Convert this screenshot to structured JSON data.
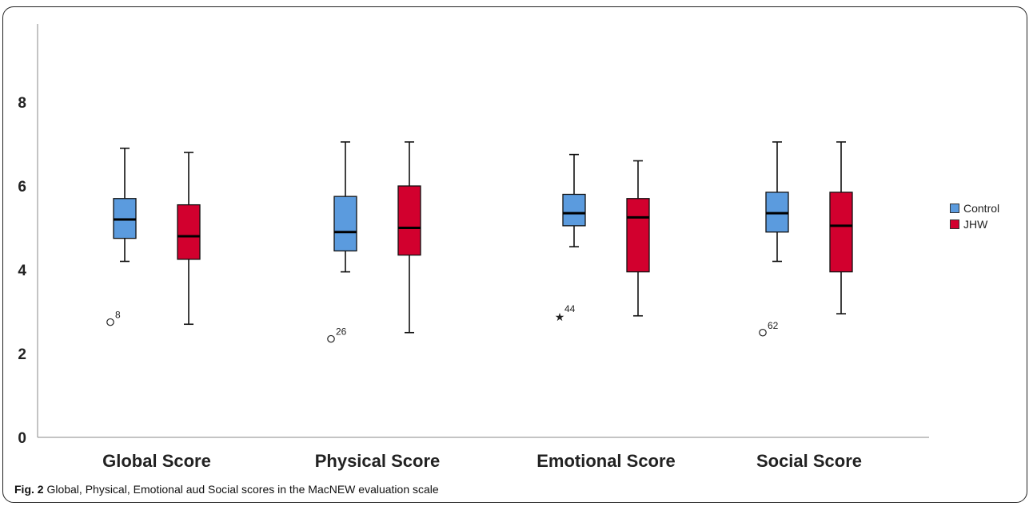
{
  "caption": {
    "label": "Fig. 2",
    "text": "Global, Physical, Emotional aud Social scores in the MacNEW evaluation scale"
  },
  "colors": {
    "control": "#5b9bde",
    "jhw": "#d2002e"
  },
  "chart_data": {
    "type": "boxplot",
    "title": "",
    "xlabel": "",
    "ylabel": "",
    "ylim": [
      0,
      9.5
    ],
    "yticks": [
      0,
      2,
      4,
      6,
      8
    ],
    "grid": false,
    "legend_position": "right",
    "categories": [
      "Global Score",
      "Physical Score",
      "Emotional Score",
      "Social Score"
    ],
    "series": [
      {
        "name": "Control",
        "boxes": [
          {
            "min": 4.2,
            "q1": 4.75,
            "median": 5.2,
            "q3": 5.7,
            "max": 6.9,
            "outliers": [
              {
                "value": 2.75,
                "label": "8",
                "marker": "circle"
              }
            ]
          },
          {
            "min": 3.95,
            "q1": 4.45,
            "median": 4.9,
            "q3": 5.75,
            "max": 7.05,
            "outliers": [
              {
                "value": 2.35,
                "label": "26",
                "marker": "circle"
              }
            ]
          },
          {
            "min": 4.55,
            "q1": 5.05,
            "median": 5.35,
            "q3": 5.8,
            "max": 6.75,
            "outliers": [
              {
                "value": 2.9,
                "label": "44",
                "marker": "star"
              }
            ]
          },
          {
            "min": 4.2,
            "q1": 4.9,
            "median": 5.35,
            "q3": 5.85,
            "max": 7.05,
            "outliers": [
              {
                "value": 2.5,
                "label": "62",
                "marker": "circle"
              }
            ]
          }
        ]
      },
      {
        "name": "JHW",
        "boxes": [
          {
            "min": 2.7,
            "q1": 4.25,
            "median": 4.8,
            "q3": 5.55,
            "max": 6.8,
            "outliers": []
          },
          {
            "min": 2.5,
            "q1": 4.35,
            "median": 5.0,
            "q3": 6.0,
            "max": 7.05,
            "outliers": []
          },
          {
            "min": 2.9,
            "q1": 3.95,
            "median": 5.25,
            "q3": 5.7,
            "max": 6.6,
            "outliers": []
          },
          {
            "min": 2.95,
            "q1": 3.95,
            "median": 5.05,
            "q3": 5.85,
            "max": 7.05,
            "outliers": []
          }
        ]
      }
    ]
  }
}
